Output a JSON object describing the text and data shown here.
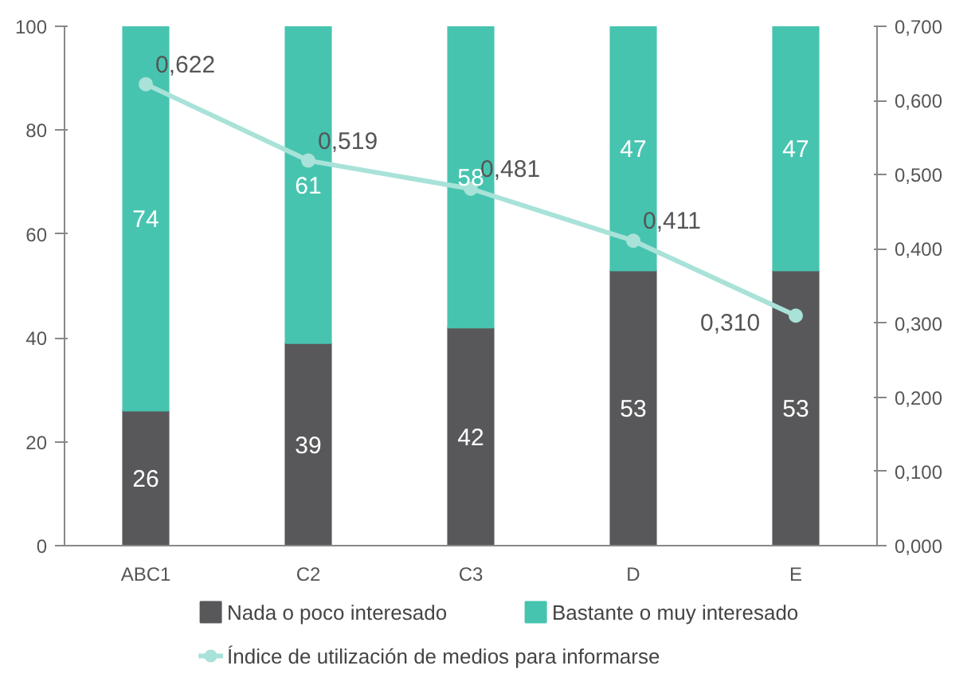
{
  "chart_data": {
    "type": "bar",
    "stacked": true,
    "categories": [
      "ABC1",
      "C2",
      "C3",
      "D",
      "E"
    ],
    "series": [
      {
        "name": "Nada o poco interesado",
        "color": "#58585a",
        "values": [
          26,
          39,
          42,
          53,
          53
        ],
        "value_labels": [
          "26",
          "39",
          "42",
          "53",
          "53"
        ]
      },
      {
        "name": "Bastante o muy interesado",
        "color": "#47c4b0",
        "values": [
          74,
          61,
          58,
          47,
          47
        ],
        "value_labels": [
          "74",
          "61",
          "58",
          "47",
          "47"
        ]
      },
      {
        "name": "Índice de utilización de medios para informarse",
        "type": "line",
        "axis": "y2",
        "color": "#a8e2d8",
        "marker": "circle",
        "values": [
          0.622,
          0.519,
          0.481,
          0.411,
          0.31
        ],
        "value_labels": [
          "0,622",
          "0,519",
          "0,481",
          "0,411",
          "0,310"
        ]
      }
    ],
    "ylim": [
      0,
      100
    ],
    "yticks": [
      0,
      20,
      40,
      60,
      80,
      100
    ],
    "y2lim": [
      0,
      0.7
    ],
    "y2ticks": [
      {
        "value": 0,
        "label": "0,000"
      },
      {
        "value": 0.1,
        "label": "0,100"
      },
      {
        "value": 0.2,
        "label": "0,200"
      },
      {
        "value": 0.3,
        "label": "0,300"
      },
      {
        "value": 0.4,
        "label": "0,400"
      },
      {
        "value": 0.5,
        "label": "0,500"
      },
      {
        "value": 0.6,
        "label": "0,600"
      },
      {
        "value": 0.7,
        "label": "0,700"
      }
    ],
    "grid": false,
    "legend": "bottom"
  }
}
